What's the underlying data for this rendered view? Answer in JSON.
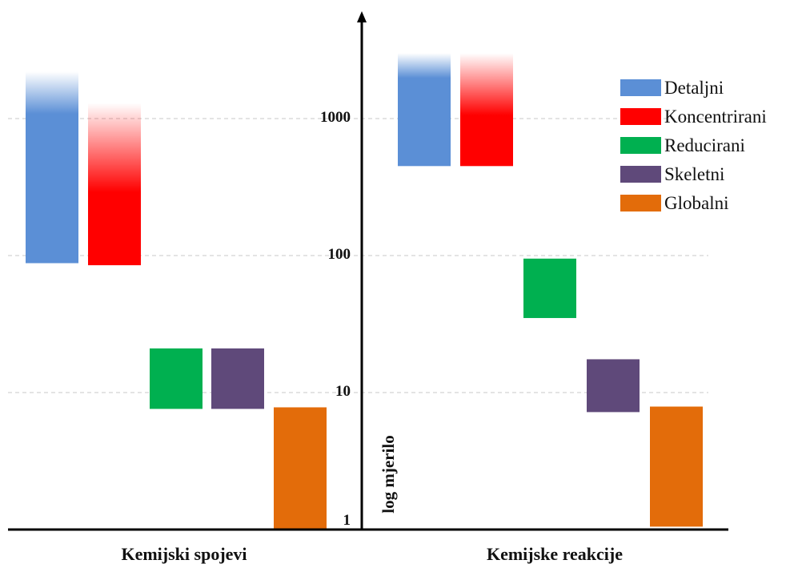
{
  "chart_data": {
    "type": "bar",
    "subtype": "floating-range",
    "title": "",
    "ylabel": "log mjerilo",
    "yscale": "log",
    "ylim": [
      1,
      3000
    ],
    "yticks": [
      {
        "value": 1,
        "label": "1"
      },
      {
        "value": 10,
        "label": "10"
      },
      {
        "value": 100,
        "label": "100"
      },
      {
        "value": 1000,
        "label": "1000"
      }
    ],
    "grid": true,
    "legend_position": "top-right",
    "series": [
      {
        "name": "Detaljni",
        "color": "#5b8fd6"
      },
      {
        "name": "Koncentrirani",
        "color": "#ff0000"
      },
      {
        "name": "Reducirani",
        "color": "#00b050"
      },
      {
        "name": "Skeletni",
        "color": "#5f497a"
      },
      {
        "name": "Globalni",
        "color": "#e36c0a"
      }
    ],
    "groups": [
      {
        "label": "Kemijski spojevi",
        "ranges": [
          {
            "series": "Detaljni",
            "low": 88,
            "high": 2200,
            "fade_top": true
          },
          {
            "series": "Koncentrirani",
            "low": 85,
            "high": 1300,
            "fade_top": true
          },
          {
            "series": "Reducirani",
            "low": 7.6,
            "high": 21,
            "fade_top": false
          },
          {
            "series": "Skeletni",
            "low": 7.6,
            "high": 21,
            "fade_top": false
          },
          {
            "series": "Globalni",
            "low": 1,
            "high": 7.8,
            "fade_top": false
          }
        ]
      },
      {
        "label": "Kemijske reakcije",
        "ranges": [
          {
            "series": "Detaljni",
            "low": 450,
            "high": 3000,
            "fade_top": true
          },
          {
            "series": "Koncentrirani",
            "low": 450,
            "high": 3000,
            "fade_top": true
          },
          {
            "series": "Reducirani",
            "low": 35,
            "high": 95,
            "fade_top": false
          },
          {
            "series": "Skeletni",
            "low": 7.2,
            "high": 17.5,
            "fade_top": false
          },
          {
            "series": "Globalni",
            "low": 1.05,
            "high": 7.9,
            "fade_top": false
          }
        ]
      }
    ]
  }
}
